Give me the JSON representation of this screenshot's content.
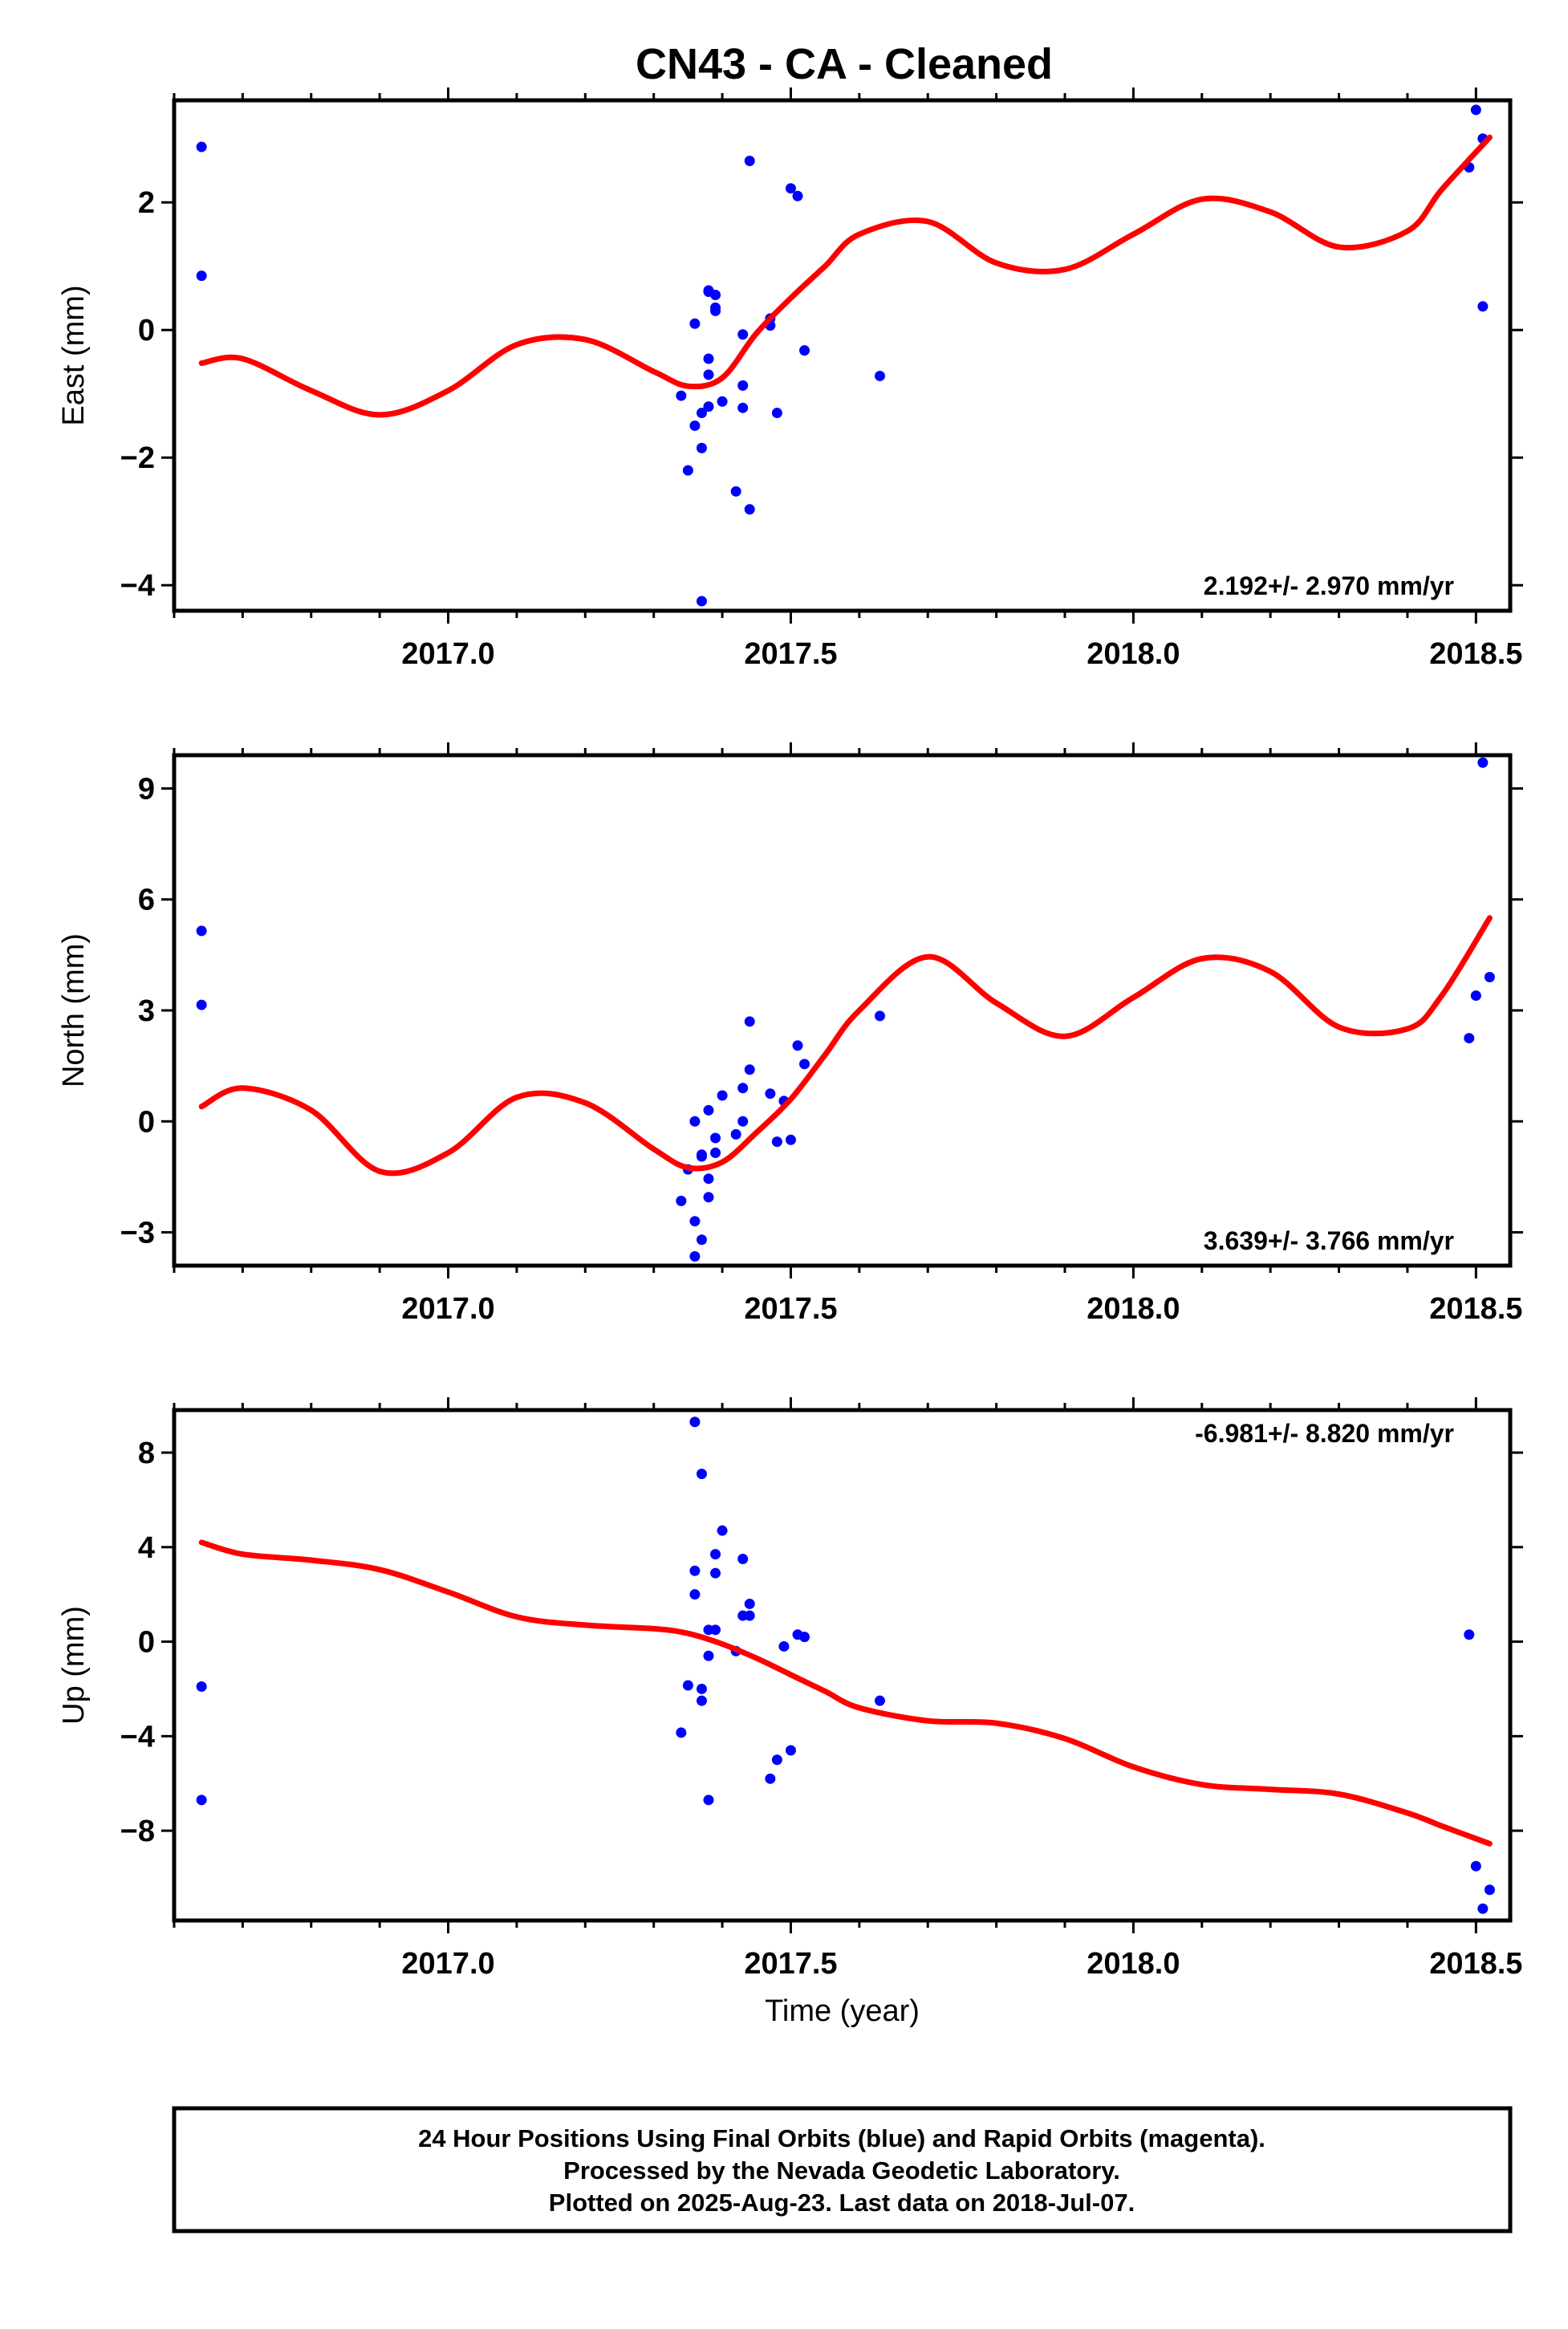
{
  "title": "CN43  - CA - Cleaned",
  "footer": {
    "lines": [
      "24 Hour Positions Using Final Orbits (blue) and Rapid Orbits (magenta).",
      "Processed by the Nevada Geodetic Laboratory.",
      "Plotted on 2025-Aug-23. Last data on 2018-Jul-07."
    ]
  },
  "colors": {
    "points": "#0000ff",
    "fit": "#ff0000",
    "frame": "#000000"
  },
  "chart_data": [
    {
      "type": "scatter",
      "ylabel": "East (mm)",
      "xlabel": "",
      "rate_text": "2.192+/- 2.970 mm/yr",
      "rate_position": "bottom-right",
      "xlim": [
        2016.6,
        2018.55
      ],
      "ylim": [
        -4.4,
        3.6
      ],
      "x_ticks": [
        2017.0,
        2017.5,
        2018.0,
        2018.5
      ],
      "x_tick_labels": [
        "2017.0",
        "2017.5",
        "2018.0",
        "2018.5"
      ],
      "y_ticks": [
        -4,
        -2,
        0,
        2
      ],
      "y_tick_labels": [
        "−4",
        "−2",
        "0",
        "2"
      ],
      "series": [
        {
          "kind": "points",
          "x": [
            2016.64,
            2016.64,
            2017.34,
            2017.35,
            2017.36,
            2017.36,
            2017.37,
            2017.37,
            2017.37,
            2017.38,
            2017.38,
            2017.38,
            2017.38,
            2017.38,
            2017.39,
            2017.39,
            2017.39,
            2017.4,
            2017.42,
            2017.43,
            2017.43,
            2017.43,
            2017.44,
            2017.44,
            2017.47,
            2017.47,
            2017.48,
            2017.5,
            2017.51,
            2017.52,
            2017.63,
            2018.49,
            2018.5,
            2018.51,
            2018.51
          ],
          "y": [
            2.87,
            0.85,
            -1.03,
            -2.2,
            -1.5,
            0.1,
            -4.25,
            -1.3,
            -1.85,
            0.6,
            -0.7,
            -0.45,
            -1.2,
            0.62,
            0.3,
            0.35,
            0.55,
            -1.12,
            -2.53,
            -0.07,
            -0.87,
            -1.22,
            2.65,
            -2.81,
            0.18,
            0.07,
            -1.3,
            2.22,
            2.1,
            -0.32,
            -0.72,
            2.55,
            3.45,
            3.0,
            0.37
          ]
        },
        {
          "kind": "fit",
          "x": [
            2016.64,
            2016.7,
            2016.8,
            2016.9,
            2017.0,
            2017.1,
            2017.2,
            2017.3,
            2017.35,
            2017.4,
            2017.45,
            2017.5,
            2017.55,
            2017.6,
            2017.7,
            2017.8,
            2017.9,
            2018.0,
            2018.1,
            2018.2,
            2018.3,
            2018.4,
            2018.45,
            2018.52
          ],
          "y": [
            -0.52,
            -0.45,
            -0.95,
            -1.33,
            -0.95,
            -0.23,
            -0.15,
            -0.65,
            -0.88,
            -0.75,
            -0.05,
            0.5,
            1.0,
            1.5,
            1.7,
            1.05,
            0.95,
            1.5,
            2.05,
            1.85,
            1.3,
            1.55,
            2.2,
            3.02
          ]
        }
      ]
    },
    {
      "type": "scatter",
      "ylabel": "North (mm)",
      "xlabel": "",
      "rate_text": "3.639+/- 3.766 mm/yr",
      "rate_position": "bottom-right",
      "xlim": [
        2016.6,
        2018.55
      ],
      "ylim": [
        -3.9,
        9.9
      ],
      "x_ticks": [
        2017.0,
        2017.5,
        2018.0,
        2018.5
      ],
      "x_tick_labels": [
        "2017.0",
        "2017.5",
        "2018.0",
        "2018.5"
      ],
      "y_ticks": [
        -3,
        0,
        3,
        6,
        9
      ],
      "y_tick_labels": [
        "−3",
        "0",
        "3",
        "6",
        "9"
      ],
      "series": [
        {
          "kind": "points",
          "x": [
            2016.64,
            2016.64,
            2017.34,
            2017.35,
            2017.36,
            2017.36,
            2017.36,
            2017.37,
            2017.37,
            2017.37,
            2017.38,
            2017.38,
            2017.38,
            2017.39,
            2017.39,
            2017.4,
            2017.42,
            2017.43,
            2017.43,
            2017.44,
            2017.44,
            2017.47,
            2017.48,
            2017.49,
            2017.5,
            2017.51,
            2017.52,
            2017.63,
            2018.49,
            2018.5,
            2018.51,
            2018.52
          ],
          "y": [
            5.15,
            3.15,
            -2.15,
            -1.3,
            -2.7,
            0.0,
            -3.65,
            -0.9,
            -3.2,
            -0.95,
            -2.05,
            -1.55,
            0.3,
            -0.85,
            -0.45,
            0.7,
            -0.35,
            0.0,
            0.9,
            1.4,
            2.7,
            0.75,
            -0.55,
            0.55,
            -0.5,
            2.05,
            1.55,
            2.85,
            2.25,
            3.4,
            9.7,
            3.9
          ]
        },
        {
          "kind": "fit",
          "x": [
            2016.64,
            2016.7,
            2016.8,
            2016.9,
            2017.0,
            2017.1,
            2017.2,
            2017.3,
            2017.35,
            2017.4,
            2017.45,
            2017.5,
            2017.55,
            2017.6,
            2017.7,
            2017.8,
            2017.9,
            2018.0,
            2018.1,
            2018.2,
            2018.3,
            2018.4,
            2018.45,
            2018.52
          ],
          "y": [
            0.4,
            0.9,
            0.3,
            -1.35,
            -0.85,
            0.65,
            0.5,
            -0.75,
            -1.25,
            -1.1,
            -0.3,
            0.6,
            1.8,
            3.0,
            4.45,
            3.2,
            2.3,
            3.35,
            4.4,
            4.05,
            2.55,
            2.5,
            3.4,
            5.5
          ]
        }
      ]
    },
    {
      "type": "scatter",
      "ylabel": "Up (mm)",
      "xlabel": "Time (year)",
      "rate_text": "-6.981+/- 8.820 mm/yr",
      "rate_position": "top-right",
      "xlim": [
        2016.6,
        2018.55
      ],
      "ylim": [
        -11.8,
        9.8
      ],
      "x_ticks": [
        2017.0,
        2017.5,
        2018.0,
        2018.5
      ],
      "x_tick_labels": [
        "2017.0",
        "2017.5",
        "2018.0",
        "2018.5"
      ],
      "y_ticks": [
        -8,
        -4,
        0,
        4,
        8
      ],
      "y_tick_labels": [
        "−8",
        "−4",
        "0",
        "4",
        "8"
      ],
      "series": [
        {
          "kind": "points",
          "x": [
            2016.64,
            2016.64,
            2017.34,
            2017.35,
            2017.36,
            2017.36,
            2017.36,
            2017.37,
            2017.37,
            2017.37,
            2017.38,
            2017.38,
            2017.38,
            2017.39,
            2017.39,
            2017.39,
            2017.4,
            2017.42,
            2017.43,
            2017.43,
            2017.44,
            2017.44,
            2017.47,
            2017.48,
            2017.49,
            2017.5,
            2017.51,
            2017.52,
            2017.63,
            2018.49,
            2018.5,
            2018.51,
            2018.52
          ],
          "y": [
            -1.9,
            -6.7,
            -3.85,
            -1.85,
            9.3,
            2.0,
            3.0,
            7.1,
            -2.0,
            -2.5,
            -0.6,
            0.5,
            -6.7,
            0.5,
            2.9,
            3.7,
            4.7,
            -0.4,
            3.5,
            1.1,
            1.6,
            1.1,
            -5.8,
            -5.0,
            -0.2,
            -4.6,
            0.3,
            0.2,
            -2.5,
            0.3,
            -9.5,
            -11.3,
            -10.5
          ]
        },
        {
          "kind": "fit",
          "x": [
            2016.64,
            2016.7,
            2016.8,
            2016.9,
            2017.0,
            2017.1,
            2017.2,
            2017.3,
            2017.35,
            2017.4,
            2017.45,
            2017.5,
            2017.55,
            2017.6,
            2017.7,
            2017.8,
            2017.9,
            2018.0,
            2018.1,
            2018.2,
            2018.3,
            2018.4,
            2018.45,
            2018.52
          ],
          "y": [
            4.2,
            3.7,
            3.45,
            3.05,
            2.1,
            1.05,
            0.7,
            0.55,
            0.35,
            -0.1,
            -0.7,
            -1.4,
            -2.1,
            -2.8,
            -3.35,
            -3.45,
            -4.1,
            -5.3,
            -6.05,
            -6.25,
            -6.45,
            -7.25,
            -7.8,
            -8.55
          ]
        }
      ]
    }
  ]
}
